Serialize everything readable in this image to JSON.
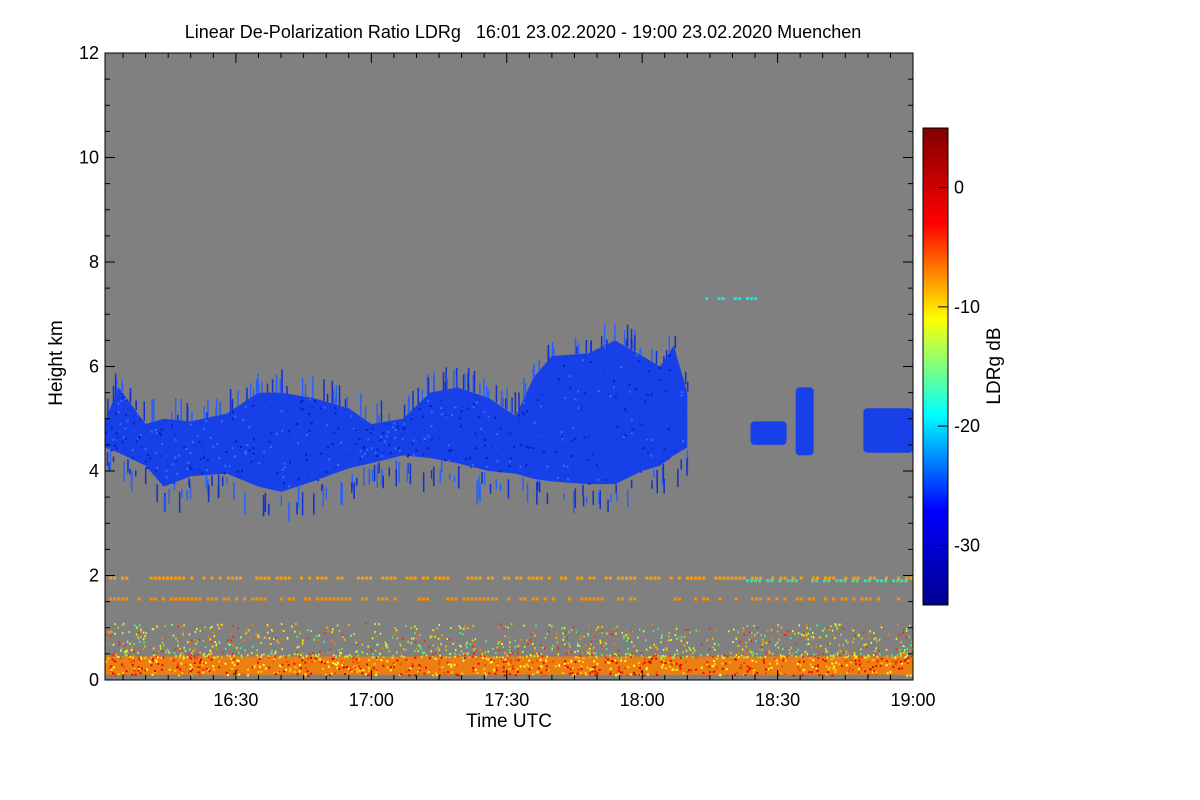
{
  "chart_data": {
    "type": "heatmap",
    "title": "Linear De-Polarization Ratio LDRg   16:01 23.02.2020 - 19:00 23.02.2020 Muenchen",
    "xlabel": "Time UTC",
    "ylabel": "Height km",
    "x_unit": "minutes after 16:00 UTC",
    "xlim": [
      1,
      180
    ],
    "ylim": [
      0,
      12
    ],
    "xticks": [
      {
        "value": 30,
        "label": "16:30"
      },
      {
        "value": 60,
        "label": "17:00"
      },
      {
        "value": 90,
        "label": "17:30"
      },
      {
        "value": 120,
        "label": "18:00"
      },
      {
        "value": 150,
        "label": "18:30"
      },
      {
        "value": 180,
        "label": "19:00"
      }
    ],
    "yticks": [
      {
        "value": 0,
        "label": "0"
      },
      {
        "value": 2,
        "label": "2"
      },
      {
        "value": 4,
        "label": "4"
      },
      {
        "value": 6,
        "label": "6"
      },
      {
        "value": 8,
        "label": "8"
      },
      {
        "value": 10,
        "label": "10"
      },
      {
        "value": 12,
        "label": "12"
      }
    ],
    "background_color": "#808080",
    "colorbar": {
      "label": "LDRg dB",
      "range": [
        -35,
        5
      ],
      "ticks": [
        {
          "value": 0,
          "label": "0"
        },
        {
          "value": -10,
          "label": "-10"
        },
        {
          "value": -20,
          "label": "-20"
        },
        {
          "value": -30,
          "label": "-30"
        }
      ],
      "colormap": [
        "#00008f",
        "#0000ff",
        "#00ffff",
        "#ffff00",
        "#ff0000",
        "#800000"
      ]
    },
    "layers": [
      {
        "name": "mid-level cloud",
        "ldr_db": -31,
        "color": "#1840e8",
        "profile": [
          {
            "t": 1,
            "base": 4.45,
            "top": 4.95
          },
          {
            "t": 4,
            "base": 4.35,
            "top": 5.6
          },
          {
            "t": 10,
            "base": 4.1,
            "top": 4.9
          },
          {
            "t": 14,
            "base": 3.7,
            "top": 5.0
          },
          {
            "t": 20,
            "base": 3.9,
            "top": 4.95
          },
          {
            "t": 28,
            "base": 3.95,
            "top": 5.1
          },
          {
            "t": 35,
            "base": 3.7,
            "top": 5.5
          },
          {
            "t": 40,
            "base": 3.6,
            "top": 5.5
          },
          {
            "t": 47,
            "base": 3.8,
            "top": 5.4
          },
          {
            "t": 55,
            "base": 4.05,
            "top": 5.2
          },
          {
            "t": 60,
            "base": 4.15,
            "top": 4.9
          },
          {
            "t": 67,
            "base": 4.3,
            "top": 5.0
          },
          {
            "t": 73,
            "base": 4.25,
            "top": 5.5
          },
          {
            "t": 79,
            "base": 4.15,
            "top": 5.6
          },
          {
            "t": 86,
            "base": 4.0,
            "top": 5.4
          },
          {
            "t": 92,
            "base": 3.95,
            "top": 5.05
          },
          {
            "t": 96,
            "base": 3.85,
            "top": 5.8
          },
          {
            "t": 100,
            "base": 3.8,
            "top": 6.2
          },
          {
            "t": 108,
            "base": 3.75,
            "top": 6.25
          },
          {
            "t": 114,
            "base": 3.75,
            "top": 6.5
          },
          {
            "t": 120,
            "base": 4.0,
            "top": 6.2
          },
          {
            "t": 124,
            "base": 4.1,
            "top": 6.0
          },
          {
            "t": 127,
            "base": 4.3,
            "top": 6.4
          },
          {
            "t": 130,
            "base": 4.45,
            "top": 5.5
          }
        ],
        "patches": [
          {
            "t0": 144,
            "t1": 152,
            "base": 4.5,
            "top": 4.95
          },
          {
            "t0": 154,
            "t1": 158,
            "base": 4.3,
            "top": 5.6
          },
          {
            "t0": 169,
            "t1": 180,
            "base": 4.35,
            "top": 5.2
          }
        ]
      },
      {
        "name": "near-surface aerosol",
        "ldr_db": -5,
        "color": "#ff7f00",
        "t0": 1,
        "t1": 180,
        "base": 0.1,
        "top": 0.45
      },
      {
        "name": "scattered low returns",
        "ldr_db": -12,
        "color": "#e8c020",
        "t0": 1,
        "t1": 180,
        "base": 0.45,
        "top": 1.1
      },
      {
        "name": "dashed layer 2.0 km",
        "ldr_db": -8,
        "color": "#ffa000",
        "t0": 1,
        "t1": 180,
        "height": 1.95
      },
      {
        "name": "dashed layer 1.6 km",
        "ldr_db": -8,
        "color": "#ff9000",
        "t0": 1,
        "t1": 180,
        "height": 1.55
      },
      {
        "name": "layer 1.9 km after 18:20",
        "ldr_db": -18,
        "color": "#40e0a0",
        "t0": 143,
        "t1": 180,
        "height": 1.9
      },
      {
        "name": "thin layer 7.3 km",
        "ldr_db": -20,
        "color": "#20e0e0",
        "t0": 134,
        "t1": 145,
        "height": 7.3
      }
    ]
  }
}
